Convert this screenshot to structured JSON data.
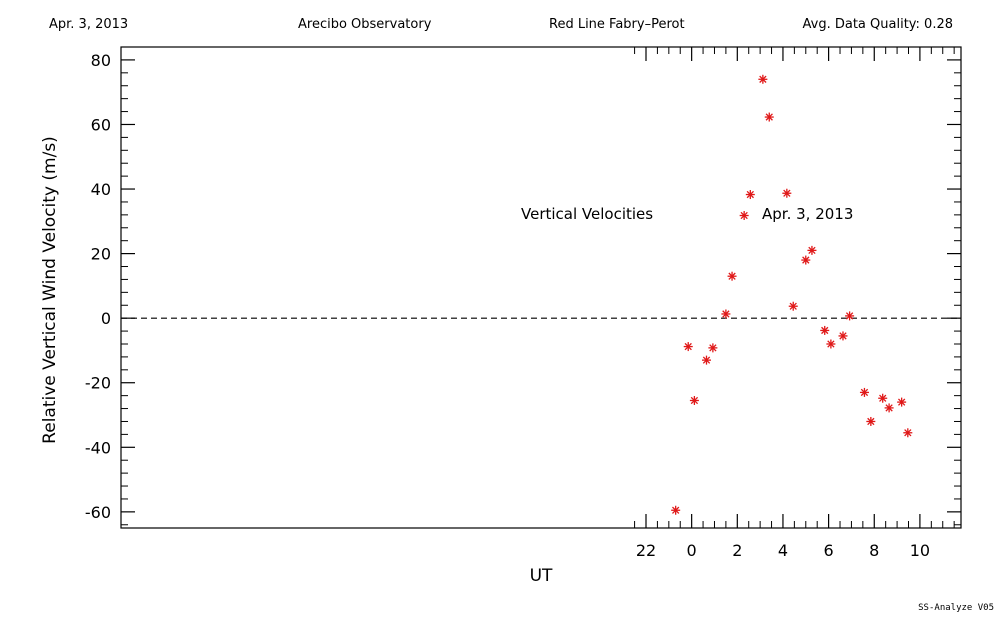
{
  "header": {
    "date": "Apr. 3, 2013",
    "observatory": "Arecibo Observatory",
    "instrument": "Red Line Fabry–Perot",
    "quality": "Avg. Data Quality: 0.28"
  },
  "footer": "SS-Analyze V05",
  "chart_data": {
    "type": "scatter",
    "xlabel": "UT",
    "ylabel": "Relative Vertical Wind Velocity (m/s)",
    "annotations": [
      "Vertical Velocities",
      "Apr. 3, 2013"
    ],
    "xlim": [
      -25.0,
      11.8
    ],
    "ylim": [
      -65,
      84
    ],
    "x_ticks": [
      22,
      0,
      2,
      4,
      6,
      8,
      10
    ],
    "y_ticks": [
      -60,
      -40,
      -20,
      0,
      20,
      40,
      60,
      80
    ],
    "zero_line": true,
    "marker_color": "#e01818",
    "series": [
      {
        "x": [
          -0.7,
          -0.15,
          0.12,
          0.65,
          0.93,
          1.5,
          1.77,
          2.3,
          2.57,
          3.12,
          3.4,
          4.17,
          4.45,
          5.0,
          5.27,
          5.83,
          6.1,
          6.63,
          6.92,
          7.57,
          7.85,
          8.37,
          8.65,
          9.2,
          9.47
        ],
        "y": [
          -59.5,
          -8.8,
          -25.5,
          -13.0,
          -9.2,
          1.3,
          13.0,
          31.8,
          38.3,
          74.0,
          62.3,
          38.7,
          3.7,
          18.0,
          21.0,
          -3.8,
          -8.0,
          -5.5,
          0.7,
          -23.0,
          -32.0,
          -24.8,
          -27.8,
          -26.0,
          -35.5
        ]
      }
    ]
  }
}
